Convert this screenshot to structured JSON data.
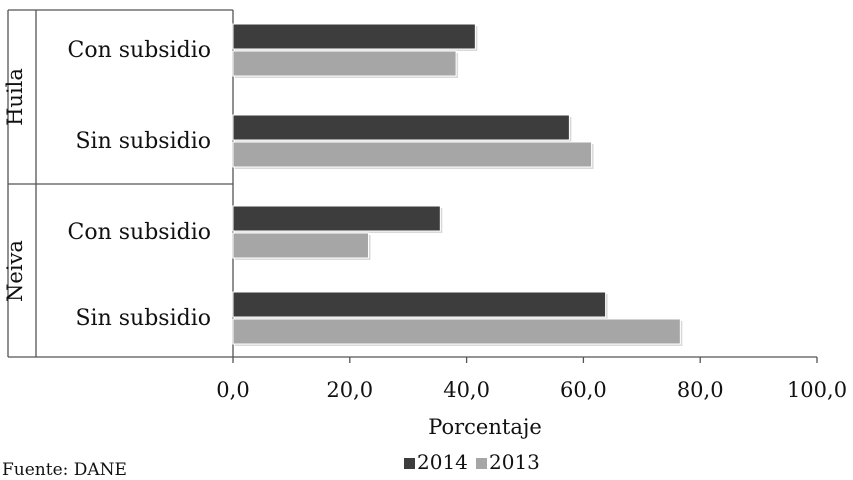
{
  "chart_data": {
    "type": "bar",
    "orientation": "horizontal",
    "title": "",
    "xlabel": "Porcentaje",
    "ylabel": "",
    "xlim": [
      0,
      100
    ],
    "x_ticks": [
      "0,0",
      "20,0",
      "40,0",
      "60,0",
      "80,0",
      "100,0"
    ],
    "groups": [
      {
        "name": "Huila",
        "categories": [
          "Con subsidio",
          "Sin subsidio"
        ]
      },
      {
        "name": "Neiva",
        "categories": [
          "Con subsidio",
          "Sin subsidio"
        ]
      }
    ],
    "series": [
      {
        "name": "2014",
        "color": "#3d3d3d",
        "values": [
          41.5,
          57.6,
          35.5,
          63.8
        ]
      },
      {
        "name": "2013",
        "color": "#a6a6a6",
        "values": [
          38.2,
          61.4,
          23.2,
          76.6
        ]
      }
    ],
    "legend": {
      "position": "bottom",
      "items": [
        "2014",
        "2013"
      ]
    },
    "grid": false
  },
  "source_note": "Fuente: DANE"
}
